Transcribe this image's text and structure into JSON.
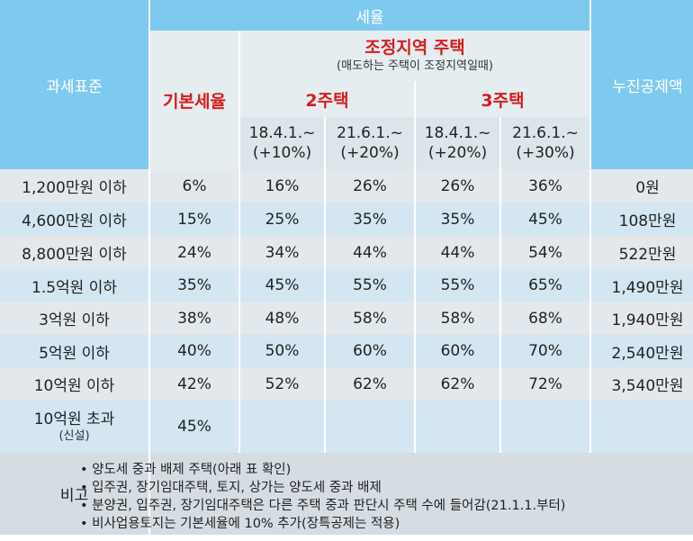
{
  "header": {
    "tax_base": "과세표준",
    "tax_rate": "세율",
    "basic_rate": "기본세율",
    "adjusted_area": "조정지역 주택",
    "adjusted_area_note": "(매도하는 주택이 조정지역일때)",
    "two_house": "2주택",
    "three_house": "3주택",
    "progressive_deduction": "누진공제액",
    "periods": [
      {
        "date": "18.4.1.~",
        "add": "(+10%)"
      },
      {
        "date": "21.6.1.~",
        "add": "(+20%)"
      },
      {
        "date": "18.4.1.~",
        "add": "(+20%)"
      },
      {
        "date": "21.6.1.~",
        "add": "(+30%)"
      }
    ]
  },
  "rows": [
    {
      "base": "1,200만원 이하",
      "basic": "6%",
      "h2a": "16%",
      "h2b": "26%",
      "h3a": "26%",
      "h3b": "36%",
      "deduct": "0원"
    },
    {
      "base": "4,600만원 이하",
      "basic": "15%",
      "h2a": "25%",
      "h2b": "35%",
      "h3a": "35%",
      "h3b": "45%",
      "deduct": "108만원"
    },
    {
      "base": "8,800만원 이하",
      "basic": "24%",
      "h2a": "34%",
      "h2b": "44%",
      "h3a": "44%",
      "h3b": "54%",
      "deduct": "522만원"
    },
    {
      "base": "1.5억원 이하",
      "basic": "35%",
      "h2a": "45%",
      "h2b": "55%",
      "h3a": "55%",
      "h3b": "65%",
      "deduct": "1,490만원"
    },
    {
      "base": "3억원 이하",
      "basic": "38%",
      "h2a": "48%",
      "h2b": "58%",
      "h3a": "58%",
      "h3b": "68%",
      "deduct": "1,940만원"
    },
    {
      "base": "5억원 이하",
      "basic": "40%",
      "h2a": "50%",
      "h2b": "60%",
      "h3a": "60%",
      "h3b": "70%",
      "deduct": "2,540만원"
    },
    {
      "base": "10억원 이하",
      "basic": "42%",
      "h2a": "52%",
      "h2b": "62%",
      "h3a": "62%",
      "h3b": "72%",
      "deduct": "3,540만원"
    }
  ],
  "last_row": {
    "base": "10억원 초과",
    "base_note": "(신설)",
    "basic": "45%"
  },
  "remarks": {
    "label": "비고",
    "items": [
      "양도세 중과 배제 주택(아래 표 확인)",
      "입주권, 장기임대주택, 토지, 상가는 양도세 중과 배제",
      "분양권, 입주권, 장기임대주택은 다른 주택 중과 판단시 주택 수에 들어감(21.1.1.부터)",
      "비사업용토지는 기본세율에 10% 추가(장특공제는 적용)"
    ]
  }
}
